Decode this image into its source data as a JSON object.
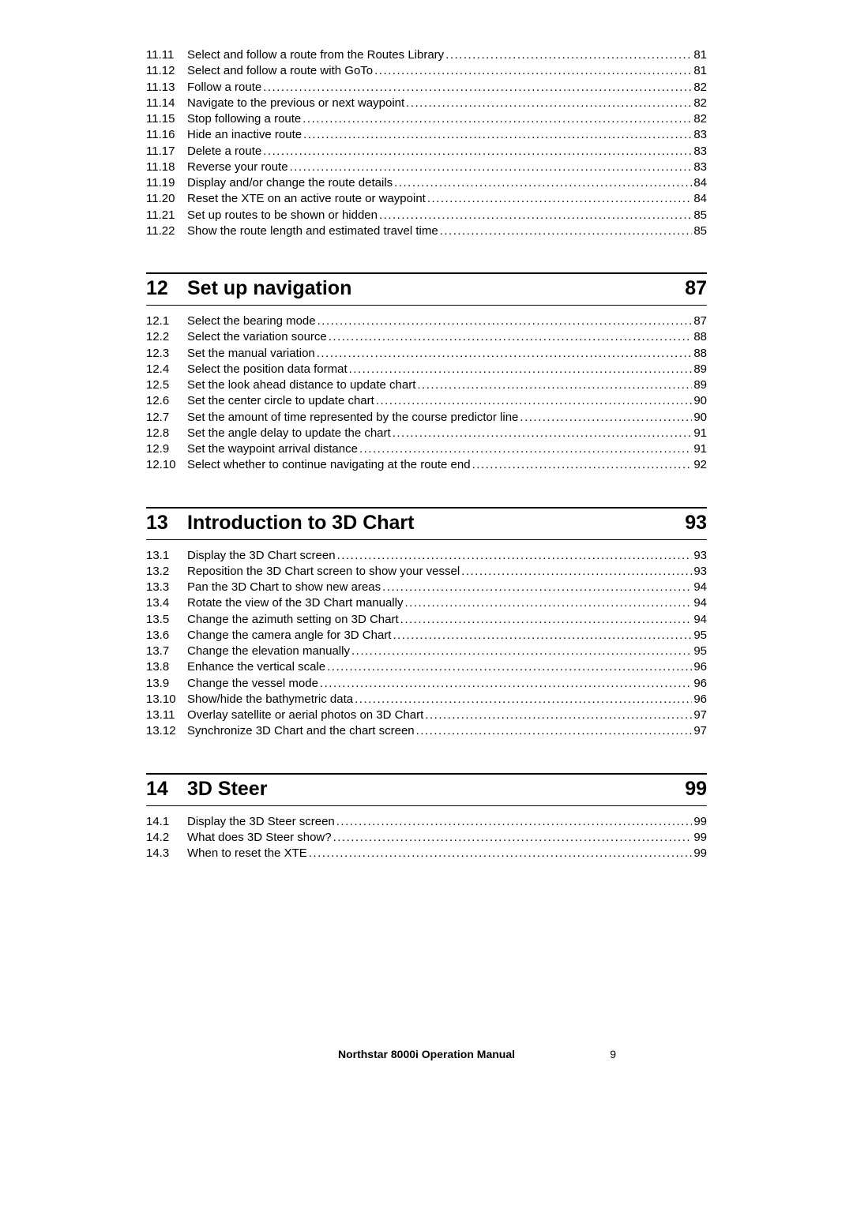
{
  "footer": {
    "title": "Northstar 8000i Operation Manual",
    "page_number": "9"
  },
  "sections": [
    {
      "chapter_num": null,
      "chapter_title": null,
      "chapter_page": null,
      "entries": [
        {
          "num": "11.11",
          "title": "Select and follow a route from the Routes Library",
          "page": "81"
        },
        {
          "num": "11.12",
          "title": "Select and follow a route with GoTo",
          "page": "81"
        },
        {
          "num": "11.13",
          "title": "Follow a route",
          "page": "82"
        },
        {
          "num": "11.14",
          "title": "Navigate to the previous or next waypoint",
          "page": "82"
        },
        {
          "num": "11.15",
          "title": "Stop following a route",
          "page": "82"
        },
        {
          "num": "11.16",
          "title": "Hide an inactive route",
          "page": "83"
        },
        {
          "num": "11.17",
          "title": "Delete a route",
          "page": "83"
        },
        {
          "num": "11.18",
          "title": "Reverse your route",
          "page": "83"
        },
        {
          "num": "11.19",
          "title": "Display and/or change the route details",
          "page": "84"
        },
        {
          "num": "11.20",
          "title": "Reset the XTE on an active route or waypoint",
          "page": "84"
        },
        {
          "num": "11.21",
          "title": "Set up routes to be shown or hidden",
          "page": "85"
        },
        {
          "num": "11.22",
          "title": "Show the route length and estimated travel time",
          "page": "85"
        }
      ]
    },
    {
      "chapter_num": "12",
      "chapter_title": "Set up navigation",
      "chapter_page": "87",
      "entries": [
        {
          "num": "12.1",
          "title": "Select the bearing mode",
          "page": "87"
        },
        {
          "num": "12.2",
          "title": "Select the variation source",
          "page": "88"
        },
        {
          "num": "12.3",
          "title": "Set the manual variation",
          "page": "88"
        },
        {
          "num": "12.4",
          "title": "Select the position data format",
          "page": "89"
        },
        {
          "num": "12.5",
          "title": "Set the look ahead distance to update chart",
          "page": "89"
        },
        {
          "num": "12.6",
          "title": "Set the center circle to update chart",
          "page": "90"
        },
        {
          "num": "12.7",
          "title": "Set the amount of time represented by the course predictor line",
          "page": "90"
        },
        {
          "num": "12.8",
          "title": "Set the angle delay to update the chart",
          "page": "91"
        },
        {
          "num": "12.9",
          "title": "Set the waypoint arrival distance",
          "page": "91"
        },
        {
          "num": "12.10",
          "title": "Select whether to continue navigating at the route end",
          "page": "92"
        }
      ]
    },
    {
      "chapter_num": "13",
      "chapter_title": "Introduction to 3D Chart",
      "chapter_page": "93",
      "entries": [
        {
          "num": "13.1",
          "title": "Display the 3D Chart screen",
          "page": "93"
        },
        {
          "num": "13.2",
          "title": "Reposition the 3D Chart screen to show your vessel",
          "page": "93"
        },
        {
          "num": "13.3",
          "title": "Pan the 3D Chart to show new areas",
          "page": "94"
        },
        {
          "num": "13.4",
          "title": "Rotate the view of the 3D Chart manually",
          "page": "94"
        },
        {
          "num": "13.5",
          "title": "Change the azimuth setting on 3D Chart",
          "page": "94"
        },
        {
          "num": "13.6",
          "title": "Change the camera angle for 3D Chart",
          "page": "95"
        },
        {
          "num": "13.7",
          "title": "Change the elevation manually",
          "page": "95"
        },
        {
          "num": "13.8",
          "title": "Enhance the vertical scale",
          "page": "96"
        },
        {
          "num": "13.9",
          "title": "Change the vessel mode",
          "page": "96"
        },
        {
          "num": "13.10",
          "title": "Show/hide the bathymetric data",
          "page": "96"
        },
        {
          "num": "13.11",
          "title": "Overlay satellite or aerial photos on 3D Chart",
          "page": "97"
        },
        {
          "num": "13.12",
          "title": "Synchronize 3D Chart and the chart screen",
          "page": "97"
        }
      ]
    },
    {
      "chapter_num": "14",
      "chapter_title": "3D Steer",
      "chapter_page": "99",
      "entries": [
        {
          "num": "14.1",
          "title": "Display the 3D Steer screen",
          "page": "99"
        },
        {
          "num": "14.2",
          "title": "What does 3D Steer show?",
          "page": "99"
        },
        {
          "num": "14.3",
          "title": "When to reset the XTE",
          "page": "99"
        }
      ]
    }
  ]
}
